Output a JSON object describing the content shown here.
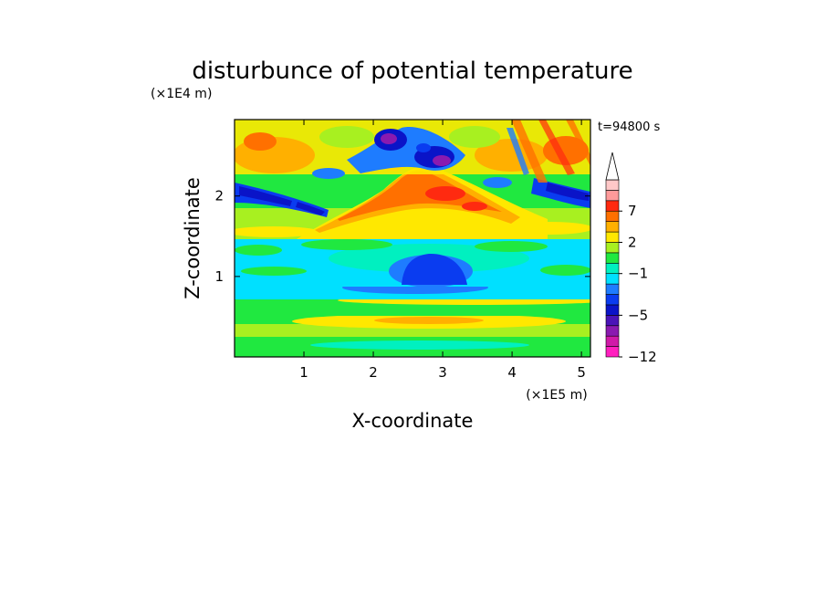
{
  "chart_data": {
    "type": "heatmap",
    "title": "disturbunce of potential temperature",
    "xlabel": "X-coordinate",
    "ylabel": "Z-coordinate",
    "x_unit": "(×1E5 m)",
    "y_unit": "(×1E4 m)",
    "time_label": "t=94800 s",
    "xlim": [
      0,
      5.13
    ],
    "ylim": [
      0,
      2.95
    ],
    "x_ticks": [
      1,
      2,
      3,
      4,
      5
    ],
    "y_ticks": [
      1,
      2
    ],
    "grid": false,
    "colorbar": {
      "levels": [
        -12,
        -10,
        -8,
        -6,
        -5,
        -4,
        -3,
        -2,
        -1,
        0,
        1,
        2,
        3,
        5,
        7,
        9,
        11
      ],
      "tick_labels": [
        {
          "value": 7,
          "text": "7"
        },
        {
          "value": 2,
          "text": "2"
        },
        {
          "value": -1,
          "text": "−1"
        },
        {
          "value": -5,
          "text": "−5"
        },
        {
          "value": -12,
          "text": "−12"
        }
      ],
      "colors": [
        "#ff1fbf",
        "#d01aa8",
        "#8a1ab0",
        "#4a14b8",
        "#0a14c8",
        "#0a3cf0",
        "#1e7cff",
        "#00e0ff",
        "#00f0c0",
        "#20e840",
        "#a8f020",
        "#ffe800",
        "#ffb000",
        "#ff7000",
        "#ff2a10",
        "#ff9a9a",
        "#ffc8c8"
      ],
      "extend": "max"
    },
    "features": [
      {
        "x": 2.85,
        "z": 0.95,
        "value": -5,
        "desc": "strong cold anomaly below cloud layer"
      },
      {
        "x": 3.0,
        "z": 1.98,
        "value": 7,
        "desc": "warm maximum"
      },
      {
        "x": 2.35,
        "z": 2.75,
        "value": -8,
        "desc": "cold cell near top"
      },
      {
        "x": 2.95,
        "z": 2.55,
        "value": -8,
        "desc": "cold cell near top"
      },
      {
        "x": 0.15,
        "z": 2.0,
        "value": -5,
        "desc": "cold band on left edge"
      },
      {
        "x": 5.05,
        "z": 2.05,
        "value": -5,
        "desc": "cold band on right edge"
      }
    ]
  }
}
